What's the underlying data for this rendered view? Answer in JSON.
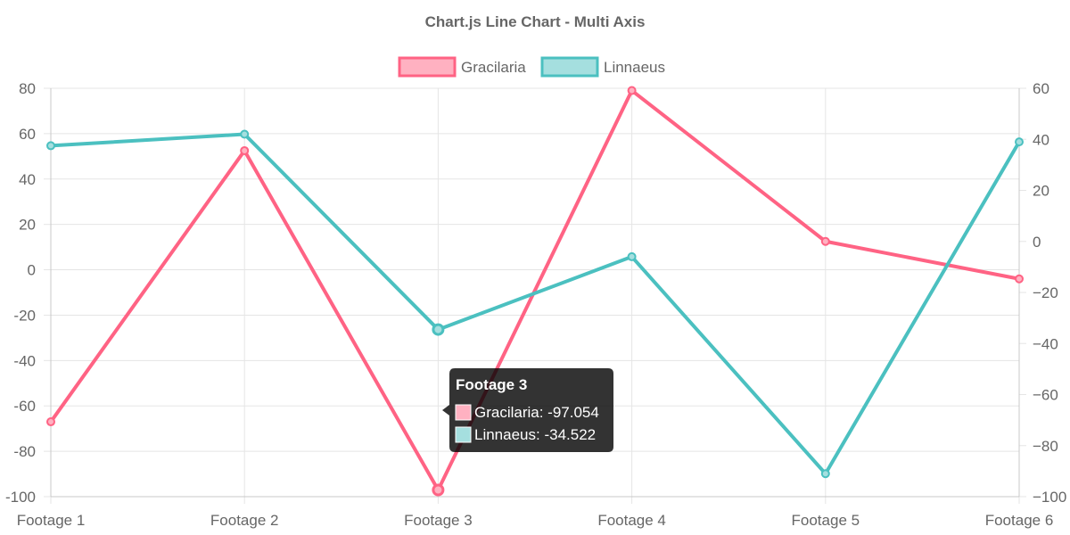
{
  "chart_data": {
    "type": "line",
    "title": "Chart.js Line Chart - Multi Axis",
    "categories": [
      "Footage 1",
      "Footage 2",
      "Footage 3",
      "Footage 4",
      "Footage 5",
      "Footage 6"
    ],
    "y_left": {
      "ylim": [
        -100,
        80
      ],
      "ticks": [
        "80",
        "60",
        "40",
        "20",
        "0",
        "-20",
        "-40",
        "-60",
        "-80",
        "-100"
      ]
    },
    "y_right": {
      "ylim": [
        -100,
        60
      ],
      "ticks": [
        "60",
        "40",
        "20",
        "0",
        "−20",
        "−40",
        "−60",
        "−80",
        "−100"
      ]
    },
    "grid": true,
    "legend_position": "top",
    "series": [
      {
        "name": "Gracilaria",
        "axis": "left",
        "color": "#ff6384",
        "fill": "#ffb1c1",
        "values": [
          -67,
          52.5,
          -97.054,
          79,
          12.5,
          -4
        ]
      },
      {
        "name": "Linnaeus",
        "axis": "right",
        "color": "#4bc0c0",
        "fill": "#a5dfdf",
        "values": [
          37.5,
          42,
          -34.522,
          -6,
          -91,
          39
        ]
      }
    ],
    "tooltip": {
      "title": "Footage 3",
      "lines": [
        "Gracilaria: -97.054",
        "Linnaeus: -34.522"
      ]
    }
  }
}
